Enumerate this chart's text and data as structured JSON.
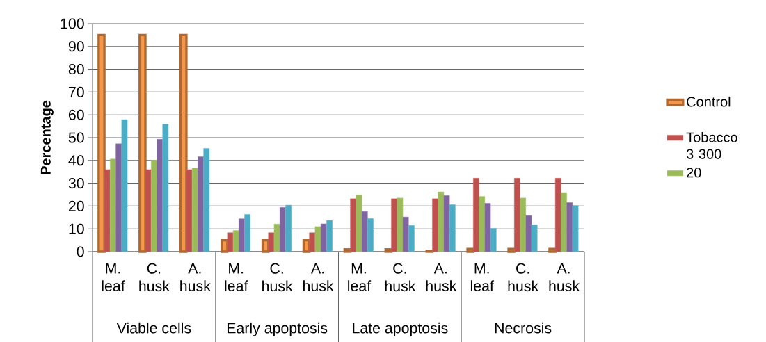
{
  "chart_data": {
    "type": "bar",
    "ylabel": "Percentage",
    "categories": [
      "M. leaf",
      "C. husk",
      "A. husk",
      "M. leaf",
      "C. husk",
      "A. husk",
      "M. leaf",
      "C. husk",
      "A. husk",
      "M. leaf",
      "C. husk",
      "A. husk"
    ],
    "series": [
      {
        "name": "Control",
        "color": "#f79646",
        "values": [
          95,
          95,
          95,
          5,
          5,
          5,
          1,
          1,
          0.3,
          1.2,
          1.2,
          1.2
        ]
      },
      {
        "name": "Tobacco 3 300",
        "color": "#c0504d",
        "values": [
          36,
          36,
          36,
          8.3,
          8.3,
          8.3,
          23.2,
          23.2,
          23.2,
          32.2,
          32.2,
          32.2
        ]
      },
      {
        "name": "20",
        "color": "#9bbb59",
        "values": [
          40.6,
          40.1,
          36.6,
          9.3,
          12.1,
          11,
          24.9,
          23.5,
          26.2,
          24.2,
          23.5,
          25.9
        ]
      },
      {
        "color": "#8064a2",
        "values": [
          47.3,
          49.3,
          41.6,
          14.4,
          19.4,
          12.2,
          17.6,
          15.2,
          24.6,
          21.2,
          15.8,
          21.5
        ]
      },
      {
        "color": "#4bacc6",
        "values": [
          57.9,
          55.9,
          45.3,
          16.3,
          20.4,
          13.7,
          14.5,
          11.5,
          20.6,
          10.2,
          11.8,
          20.2
        ]
      }
    ],
    "annotations": [
      "Viable cells",
      "Early apoptosis",
      "Late apoptosis",
      "Necrosis"
    ],
    "ylim": [
      0,
      100
    ],
    "yticks": [
      0,
      10,
      20,
      30,
      40,
      50,
      60,
      70,
      80,
      90,
      100
    ],
    "grid": "y",
    "legend": "right"
  }
}
